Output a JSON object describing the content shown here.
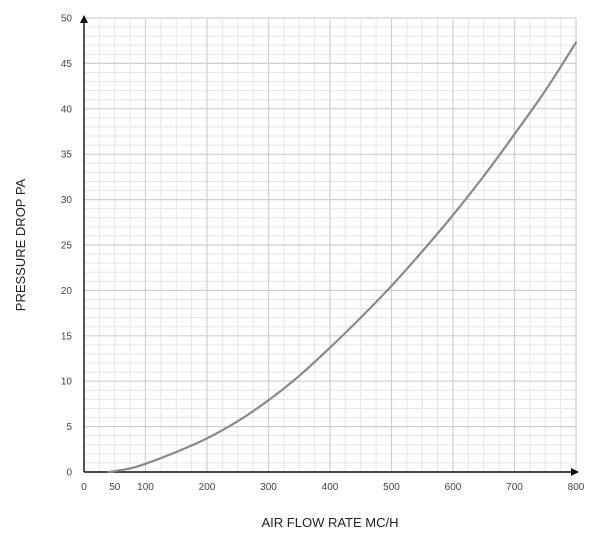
{
  "chart_data": {
    "type": "line",
    "title": "",
    "xlabel": "AIR FLOW RATE MC/H",
    "ylabel": "PRESSURE DROP PA",
    "xlim": [
      0,
      800
    ],
    "ylim": [
      0,
      50
    ],
    "x_ticks": [
      "0",
      "50",
      "100",
      "200",
      "300",
      "400",
      "500",
      "600",
      "700",
      "800"
    ],
    "y_ticks": [
      "0",
      "5",
      "10",
      "15",
      "20",
      "25",
      "30",
      "35",
      "40",
      "45",
      "50"
    ],
    "grid": true,
    "minor_grid": true,
    "legend": "none",
    "series": [
      {
        "color": "#8a8a8a",
        "x": [
          40,
          50,
          75,
          100,
          150,
          200,
          250,
          300,
          350,
          400,
          450,
          500,
          550,
          600,
          650,
          700,
          750,
          800
        ],
        "y": [
          0,
          0.1,
          0.4,
          0.9,
          2.2,
          3.7,
          5.6,
          7.9,
          10.6,
          13.7,
          17.0,
          20.5,
          24.3,
          28.3,
          32.6,
          37.2,
          42.0,
          47.3
        ]
      }
    ]
  }
}
